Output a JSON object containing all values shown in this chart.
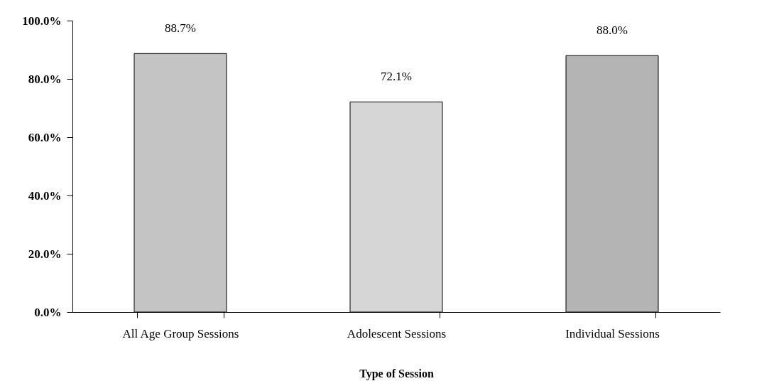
{
  "chart_data": {
    "type": "bar",
    "xlabel": "Type of Session",
    "categories": [
      "All Age Group Sessions",
      "Adolescent Sessions",
      "Individual Sessions"
    ],
    "values": [
      88.7,
      72.1,
      88.0
    ],
    "colors": [
      "#c4c4c4",
      "#d6d6d6",
      "#b4b4b4"
    ],
    "value_labels": [
      "88.7%",
      "72.1%",
      "88.0%"
    ],
    "ylim": [
      0,
      100
    ],
    "yticks": [
      {
        "value": 0,
        "label": "0.0%"
      },
      {
        "value": 20,
        "label": "20.0%"
      },
      {
        "value": 40,
        "label": "40.0%"
      },
      {
        "value": 60,
        "label": "60.0%"
      },
      {
        "value": 80,
        "label": "80.0%"
      },
      {
        "value": 100,
        "label": "100.0%"
      }
    ],
    "grid": false
  }
}
